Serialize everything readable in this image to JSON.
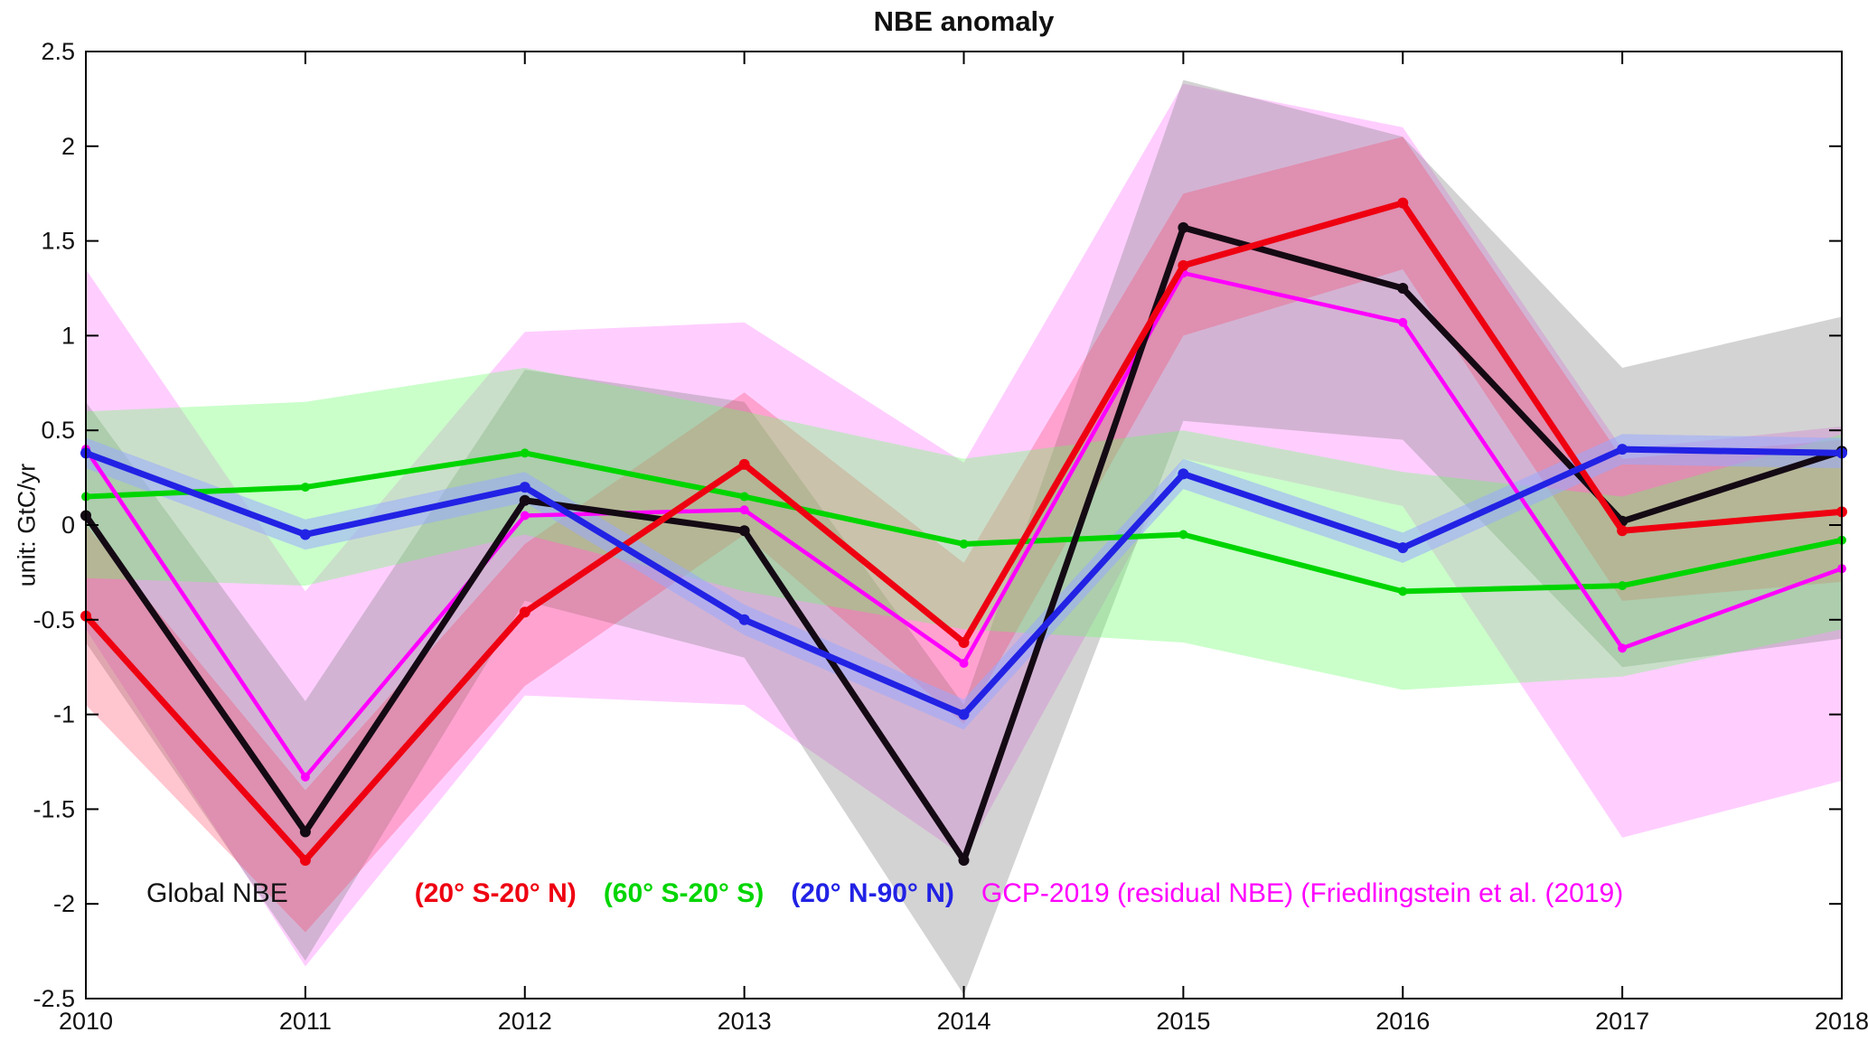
{
  "figure": {
    "title": "NBE anomaly",
    "ylabel": "unit: GtC/yr"
  },
  "chart_data": {
    "type": "line",
    "title": "NBE anomaly",
    "xlabel": "",
    "ylabel": "unit: GtC/yr",
    "x": [
      2010,
      2011,
      2012,
      2013,
      2014,
      2015,
      2016,
      2017,
      2018
    ],
    "xtick_labels": [
      "2010",
      "2011",
      "2012",
      "2013",
      "2014",
      "2015",
      "2016",
      "2017",
      "2018"
    ],
    "ylim": [
      -2.5,
      2.5
    ],
    "ytick_values": [
      -2.5,
      -2,
      -1.5,
      -1,
      -0.5,
      0,
      0.5,
      1,
      1.5,
      2,
      2.5
    ],
    "ytick_labels": [
      "-2.5",
      "-2",
      "-1.5",
      "-1",
      "-0.5",
      "0",
      "0.5",
      "1",
      "1.5",
      "2",
      "2.5"
    ],
    "grid": false,
    "legend_position": "inside-bottom-left",
    "series": [
      {
        "id": "global",
        "name": "Global NBE",
        "color": "#140a14",
        "line_width": 7,
        "marker_radius": 6,
        "values": [
          0.05,
          -1.62,
          0.13,
          -0.03,
          -1.77,
          1.57,
          1.25,
          0.02,
          0.39
        ],
        "band": {
          "upper": [
            0.65,
            -0.93,
            0.82,
            0.65,
            -0.95,
            2.35,
            2.05,
            0.83,
            1.1
          ],
          "lower": [
            -0.62,
            -2.3,
            -0.4,
            -0.7,
            -2.48,
            0.55,
            0.45,
            -0.75,
            -0.6
          ],
          "color": "#808080",
          "opacity": 0.35
        }
      },
      {
        "id": "tropics",
        "name": "(20° S-20° N)",
        "color": "#ee0011",
        "line_width": 7,
        "marker_radius": 6,
        "values": [
          -0.48,
          -1.77,
          -0.46,
          0.32,
          -0.62,
          1.37,
          1.7,
          -0.03,
          0.07
        ],
        "band": {
          "upper": [
            0.0,
            -1.4,
            -0.1,
            0.7,
            -0.2,
            1.75,
            2.05,
            0.35,
            0.45
          ],
          "lower": [
            -0.95,
            -2.15,
            -0.85,
            -0.05,
            -1.05,
            1.0,
            1.35,
            -0.4,
            -0.3
          ],
          "color": "#ff3355",
          "opacity": 0.28
        }
      },
      {
        "id": "south",
        "name": "(60° S-20° S)",
        "color": "#00d500",
        "line_width": 6,
        "marker_radius": 5,
        "values": [
          0.15,
          0.2,
          0.38,
          0.15,
          -0.1,
          -0.05,
          -0.35,
          -0.32,
          -0.08
        ],
        "band": {
          "upper": [
            0.6,
            0.65,
            0.83,
            0.6,
            0.35,
            0.5,
            0.28,
            0.15,
            0.48
          ],
          "lower": [
            -0.28,
            -0.32,
            -0.05,
            -0.35,
            -0.55,
            -0.62,
            -0.87,
            -0.8,
            -0.55
          ],
          "color": "#66ff66",
          "opacity": 0.35
        }
      },
      {
        "id": "north",
        "name": "(20° N-90° N)",
        "color": "#2222e5",
        "line_width": 7,
        "marker_radius": 6,
        "values": [
          0.38,
          -0.05,
          0.2,
          -0.5,
          -1.0,
          0.27,
          -0.12,
          0.4,
          0.38
        ],
        "band": {
          "upper": [
            0.46,
            0.03,
            0.28,
            -0.42,
            -0.92,
            0.35,
            -0.04,
            0.48,
            0.46
          ],
          "lower": [
            0.3,
            -0.13,
            0.12,
            -0.58,
            -1.08,
            0.19,
            -0.2,
            0.32,
            0.3
          ],
          "color": "#99aaff",
          "opacity": 0.55
        }
      },
      {
        "id": "gcp",
        "name": "GCP-2019 (residual NBE) (Friedlingstein et al. (2019)",
        "color": "#ff00ff",
        "line_width": 4.5,
        "marker_radius": 5,
        "values": [
          0.4,
          -1.33,
          0.05,
          0.08,
          -0.73,
          1.33,
          1.07,
          -0.65,
          -0.23
        ],
        "band": {
          "upper": [
            1.35,
            -0.35,
            1.02,
            1.07,
            0.33,
            2.33,
            2.1,
            0.4,
            0.52
          ],
          "lower": [
            -0.55,
            -2.33,
            -0.9,
            -0.95,
            -1.75,
            0.35,
            0.1,
            -1.65,
            -1.35
          ],
          "color": "#ff66ff",
          "opacity": 0.32
        }
      }
    ],
    "legend": [
      {
        "series_id": "global",
        "label": "Global NBE",
        "color": "#141414",
        "bold": false
      },
      {
        "series_id": "tropics",
        "label": "(20° S-20° N)",
        "color": "#ee0011",
        "bold": true
      },
      {
        "series_id": "south",
        "label": "(60° S-20° S)",
        "color": "#00d500",
        "bold": true
      },
      {
        "series_id": "north",
        "label": "(20° N-90° N)",
        "color": "#2222e5",
        "bold": true
      },
      {
        "series_id": "gcp",
        "label": "GCP-2019 (residual NBE) (Friedlingstein et al. (2019)",
        "color": "#ff00ff",
        "bold": false
      }
    ]
  }
}
